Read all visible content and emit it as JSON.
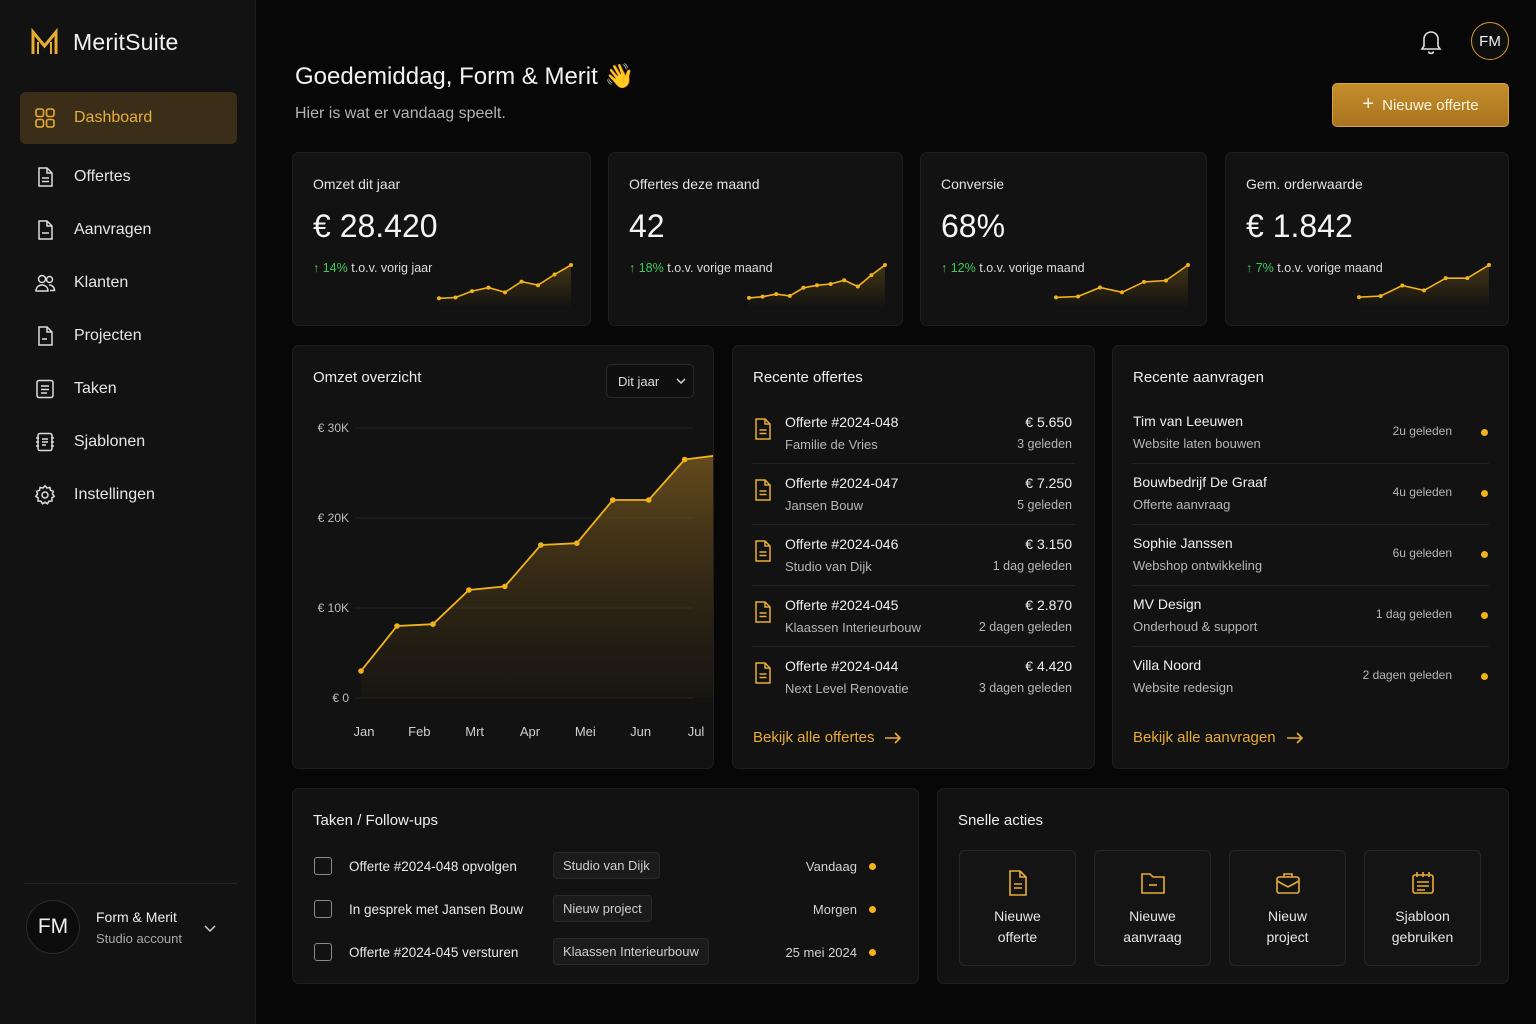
{
  "app": {
    "name": "MeritSuite",
    "logo_letter": "M"
  },
  "sidebar": {
    "items": [
      {
        "label": "Dashboard",
        "icon": "grid-icon"
      },
      {
        "label": "Offertes",
        "icon": "document-icon"
      },
      {
        "label": "Aanvragen",
        "icon": "document-icon"
      },
      {
        "label": "Klanten",
        "icon": "users-icon"
      },
      {
        "label": "Projecten",
        "icon": "document-icon"
      },
      {
        "label": "Taken",
        "icon": "list-icon"
      },
      {
        "label": "Sjablonen",
        "icon": "template-icon"
      },
      {
        "label": "Instellingen",
        "icon": "gear-icon"
      }
    ],
    "account": {
      "initials": "FM",
      "name": "Form & Merit",
      "role": "Studio account"
    }
  },
  "header": {
    "greeting": "Goedemiddag, Form & Merit 👋",
    "subtitle": "Hier is wat er vandaag speelt.",
    "avatar_initials": "FM",
    "new_button": "Nieuwe offerte"
  },
  "kpis": [
    {
      "label": "Omzet dit jaar",
      "value": "€ 28.420",
      "trend": "14%",
      "trend_text": "t.o.v. vorig jaar",
      "spark": [
        2,
        2.3,
        5,
        6.5,
        4.5,
        9,
        7.5,
        12,
        16
      ]
    },
    {
      "label": "Offertes deze maand",
      "value": "42",
      "trend": "18%",
      "trend_text": "t.o.v. vorige maand",
      "spark": [
        2,
        2.5,
        3.5,
        2.8,
        6,
        7,
        7.5,
        9,
        6.5,
        11,
        15
      ]
    },
    {
      "label": "Conversie",
      "value": "68%",
      "trend": "12%",
      "trend_text": "t.o.v. vorige maand",
      "spark": [
        2,
        2.3,
        5.5,
        3.8,
        7.5,
        8,
        13.5
      ]
    },
    {
      "label": "Gem. orderwaarde",
      "value": "€ 1.842",
      "trend": "7%",
      "trend_text": "t.o.v. vorige maand",
      "spark": [
        2,
        2.4,
        6,
        4.3,
        8.5,
        8.5,
        13
      ]
    }
  ],
  "revenue": {
    "title": "Omzet overzicht",
    "period": "Dit jaar"
  },
  "chart_data": {
    "type": "area",
    "title": "Omzet overzicht",
    "categories": [
      "Jan",
      "Feb",
      "Mrt",
      "Apr",
      "Mei",
      "Jun",
      "Jul"
    ],
    "x": [
      0,
      0.65,
      1.3,
      1.95,
      2.6,
      3.25,
      3.9,
      4.55,
      5.2,
      5.85,
      6.5
    ],
    "series": [
      {
        "values": [
          3000,
          8000,
          8200,
          12000,
          12400,
          17000,
          17200,
          22000,
          22000,
          26500,
          27000
        ]
      }
    ],
    "yticks": [
      "€ 0",
      "€ 10K",
      "€ 20K",
      "€ 30K"
    ],
    "ylim": [
      0,
      31000
    ],
    "grid": true,
    "color": "#f2b21c"
  },
  "offertes": {
    "title": "Recente offertes",
    "items": [
      {
        "title": "Offerte #2024-048",
        "client": "Familie de Vries",
        "amount": "€ 5.650",
        "time": "3 geleden"
      },
      {
        "title": "Offerte #2024-047",
        "client": "Jansen Bouw",
        "amount": "€ 7.250",
        "time": "5 geleden"
      },
      {
        "title": "Offerte #2024-046",
        "client": "Studio van Dijk",
        "amount": "€ 3.150",
        "time": "1 dag geleden"
      },
      {
        "title": "Offerte #2024-045",
        "client": "Klaassen Interieurbouw",
        "amount": "€ 2.870",
        "time": "2 dagen geleden"
      },
      {
        "title": "Offerte #2024-044",
        "client": "Next Level Renovatie",
        "amount": "€ 4.420",
        "time": "3 dagen geleden"
      }
    ],
    "link": "Bekijk alle offertes"
  },
  "aanvragen": {
    "title": "Recente aanvragen",
    "items": [
      {
        "name": "Tim van Leeuwen",
        "desc": "Website laten bouwen",
        "time": "2u geleden"
      },
      {
        "name": "Bouwbedrijf De Graaf",
        "desc": "Offerte aanvraag",
        "time": "4u geleden"
      },
      {
        "name": "Sophie Janssen",
        "desc": "Webshop ontwikkeling",
        "time": "6u geleden"
      },
      {
        "name": "MV Design",
        "desc": "Onderhoud & support",
        "time": "1 dag geleden"
      },
      {
        "name": "Villa Noord",
        "desc": "Website redesign",
        "time": "2 dagen geleden"
      }
    ],
    "link": "Bekijk alle aanvragen"
  },
  "tasks": {
    "title": "Taken / Follow-ups",
    "items": [
      {
        "text": "Offerte #2024-048 opvolgen",
        "tag": "Studio van Dijk",
        "date": "Vandaag"
      },
      {
        "text": "In gesprek met Jansen Bouw",
        "tag": "Nieuw project",
        "date": "Morgen"
      },
      {
        "text": "Offerte #2024-045 versturen",
        "tag": "Klaassen Interieurbouw",
        "date": "25 mei 2024"
      }
    ]
  },
  "quick": {
    "title": "Snelle acties",
    "items": [
      {
        "line1": "Nieuwe",
        "line2": "offerte",
        "icon": "document-icon"
      },
      {
        "line1": "Nieuwe",
        "line2": "aanvraag",
        "icon": "folder-icon"
      },
      {
        "line1": "Nieuw",
        "line2": "project",
        "icon": "briefcase-icon"
      },
      {
        "line1": "Sjabloon",
        "line2": "gebruiken",
        "icon": "template-icon"
      }
    ]
  },
  "colors": {
    "accent": "#f2b21c",
    "accent_dark": "#a9741f",
    "positive": "#3fca5c",
    "background": "#070707",
    "card": "#121212"
  }
}
